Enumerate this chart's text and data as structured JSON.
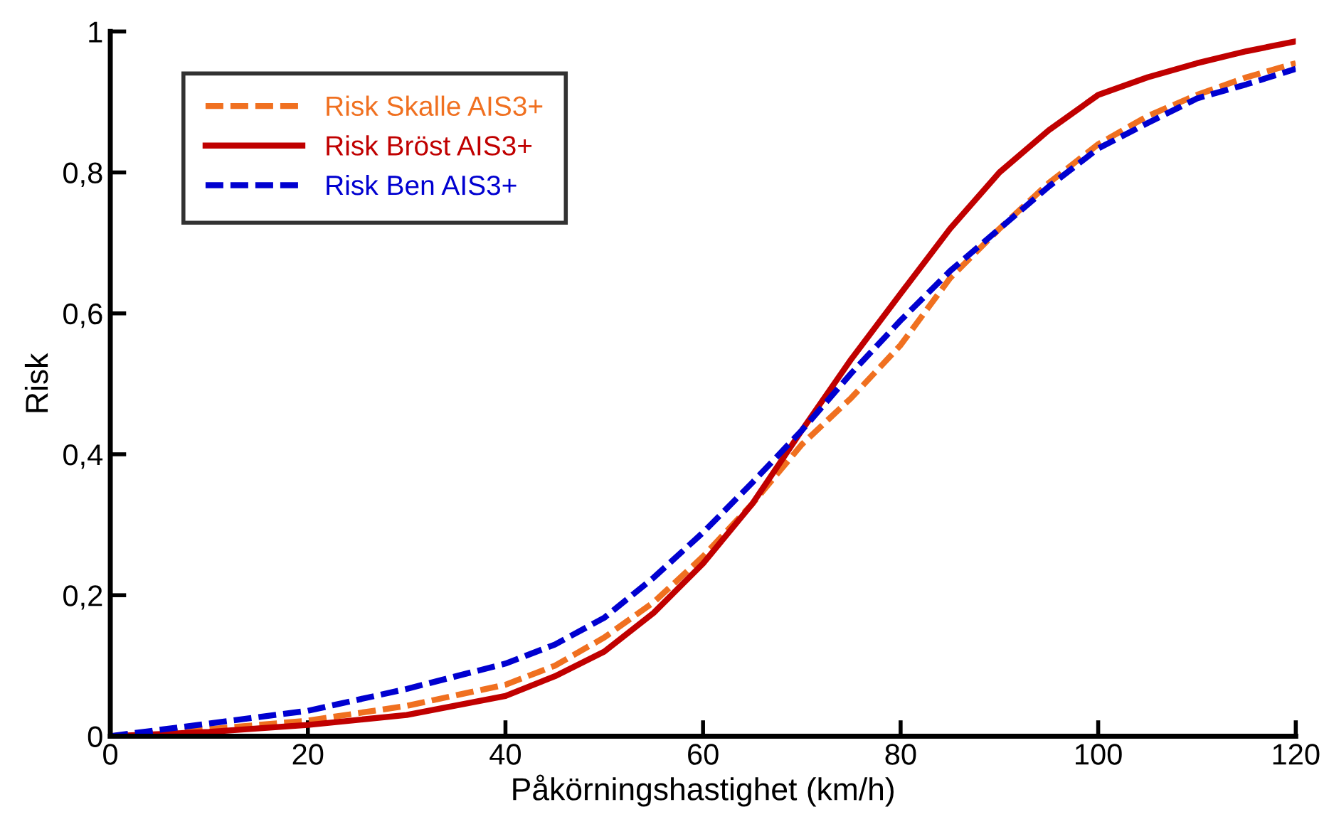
{
  "chart_data": {
    "type": "line",
    "xlabel": "Påkörningshastighet (km/h)",
    "ylabel": "Risk",
    "x": [
      0,
      10,
      20,
      30,
      40,
      45,
      50,
      55,
      60,
      65,
      70,
      75,
      80,
      85,
      90,
      95,
      100,
      105,
      110,
      115,
      120
    ],
    "series": [
      {
        "name": "Risk Skalle AIS3+",
        "color": "#f07020",
        "line_style": "dashed",
        "values": [
          0,
          0.01,
          0.022,
          0.043,
          0.073,
          0.1,
          0.14,
          0.19,
          0.255,
          0.33,
          0.414,
          0.48,
          0.555,
          0.65,
          0.72,
          0.785,
          0.84,
          0.88,
          0.91,
          0.935,
          0.955
        ]
      },
      {
        "name": "Risk Bröst AIS3+",
        "color": "#c00000",
        "line_style": "solid",
        "values": [
          0,
          0.006,
          0.016,
          0.03,
          0.057,
          0.085,
          0.12,
          0.175,
          0.245,
          0.33,
          0.434,
          0.535,
          0.628,
          0.72,
          0.8,
          0.86,
          0.91,
          0.935,
          0.955,
          0.972,
          0.986
        ]
      },
      {
        "name": "Risk Ben AIS3+",
        "color": "#0000d0",
        "line_style": "dashed",
        "values": [
          0,
          0.018,
          0.036,
          0.067,
          0.103,
          0.13,
          0.168,
          0.225,
          0.289,
          0.36,
          0.434,
          0.515,
          0.59,
          0.66,
          0.72,
          0.78,
          0.834,
          0.87,
          0.905,
          0.925,
          0.947
        ]
      }
    ],
    "xlim": [
      0,
      120
    ],
    "xticks": [
      0,
      20,
      40,
      60,
      80,
      100,
      120
    ],
    "ylim": [
      0,
      1
    ],
    "yticks": [
      {
        "value": 0,
        "label": "0"
      },
      {
        "value": 0.2,
        "label": "0,2"
      },
      {
        "value": 0.4,
        "label": "0,4"
      },
      {
        "value": 0.6,
        "label": "0,6"
      },
      {
        "value": 0.8,
        "label": "0,8"
      },
      {
        "value": 1,
        "label": "1"
      }
    ],
    "grid": false,
    "legend": "top left"
  }
}
